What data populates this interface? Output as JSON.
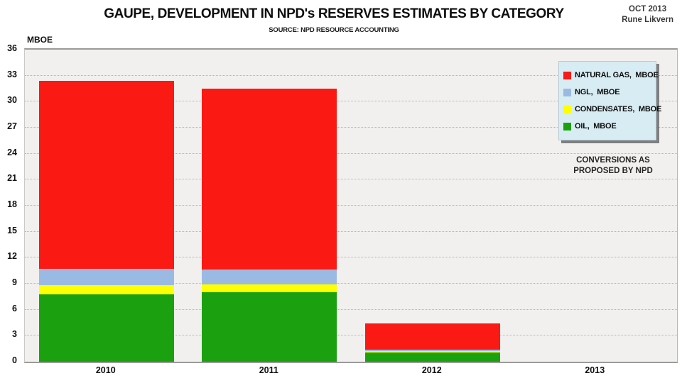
{
  "header": {
    "title": "GAUPE, DEVELOPMENT IN NPD's RESERVES ESTIMATES BY CATEGORY",
    "subtitle": "SOURCE: NPD RESOURCE ACCOUNTING",
    "date": "OCT 2013",
    "author": "Rune Likvern"
  },
  "y_axis_title": "MBOE",
  "annotation": {
    "line1": "CONVERSIONS AS",
    "line2": "PROPOSED BY NPD"
  },
  "chart_data": {
    "type": "bar",
    "stacked": true,
    "title": "GAUPE, DEVELOPMENT IN NPD's RESERVES ESTIMATES BY CATEGORY",
    "subtitle": "SOURCE: NPD RESOURCE ACCOUNTING",
    "ylabel": "MBOE",
    "xlabel": "",
    "categories": [
      "2010",
      "2011",
      "2012",
      "2013"
    ],
    "series": [
      {
        "name": "NATURAL GAS,  MBOE",
        "color": "#fa1913",
        "values": [
          21.7,
          20.9,
          3.0,
          0
        ]
      },
      {
        "name": "NGL,  MBOE",
        "color": "#9bbae3",
        "values": [
          1.9,
          1.7,
          0.2,
          0
        ]
      },
      {
        "name": "CONDENSATES,  MBOE",
        "color": "#feff00",
        "values": [
          1.0,
          0.9,
          0.1,
          0
        ]
      },
      {
        "name": "OIL,  MBOE",
        "color": "#1ba110",
        "values": [
          7.8,
          8.0,
          1.1,
          0
        ]
      }
    ],
    "stack_order_bottom_to_top": [
      "OIL,  MBOE",
      "CONDENSATES,  MBOE",
      "NGL,  MBOE",
      "NATURAL GAS,  MBOE"
    ],
    "totals": [
      32.4,
      31.5,
      4.4,
      0
    ],
    "ylim": [
      0,
      36
    ],
    "ytick_step": 3,
    "grid": true,
    "plot_background": "#f1f0ee",
    "legend_position": "top-right",
    "legend_background": "#d8ecf3"
  }
}
